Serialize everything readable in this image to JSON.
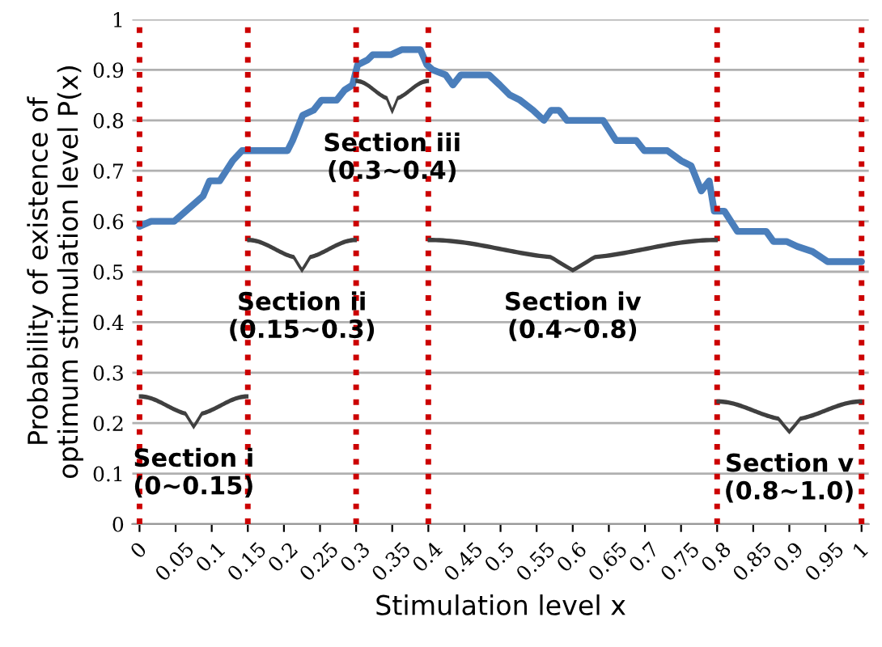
{
  "chart_data": {
    "type": "line",
    "xlabel": "Stimulation level x",
    "ylabel": "Probability of existence of\noptimum stimulation level P(x)",
    "series": [
      {
        "color": "#4a7ebb",
        "x": [
          0,
          0.016,
          0.048,
          0.08,
          0.088,
          0.097,
          0.111,
          0.129,
          0.142,
          0.148,
          0.205,
          0.212,
          0.226,
          0.241,
          0.252,
          0.273,
          0.284,
          0.295,
          0.302,
          0.316,
          0.323,
          0.348,
          0.363,
          0.389,
          0.398,
          0.406,
          0.424,
          0.434,
          0.445,
          0.484,
          0.499,
          0.513,
          0.527,
          0.545,
          0.56,
          0.57,
          0.581,
          0.592,
          0.642,
          0.66,
          0.688,
          0.699,
          0.731,
          0.75,
          0.764,
          0.778,
          0.789,
          0.796,
          0.81,
          0.828,
          0.868,
          0.878,
          0.896,
          0.911,
          0.932,
          0.953,
          0.989,
          1
        ],
        "values": [
          0.59,
          0.6,
          0.6,
          0.64,
          0.65,
          0.68,
          0.68,
          0.72,
          0.74,
          0.74,
          0.74,
          0.76,
          0.81,
          0.82,
          0.84,
          0.84,
          0.86,
          0.87,
          0.91,
          0.92,
          0.93,
          0.93,
          0.94,
          0.94,
          0.91,
          0.9,
          0.89,
          0.87,
          0.89,
          0.89,
          0.87,
          0.85,
          0.84,
          0.82,
          0.8,
          0.82,
          0.82,
          0.8,
          0.8,
          0.76,
          0.76,
          0.74,
          0.74,
          0.72,
          0.71,
          0.66,
          0.68,
          0.62,
          0.62,
          0.58,
          0.58,
          0.56,
          0.56,
          0.55,
          0.54,
          0.52,
          0.52,
          0.52
        ]
      }
    ],
    "xlim": [
      -0.01,
      1.01
    ],
    "ylim": [
      0,
      1
    ],
    "xticks": [
      0,
      0.05,
      0.1,
      0.15,
      0.2,
      0.25,
      0.3,
      0.35,
      0.4,
      0.45,
      0.5,
      0.55,
      0.6,
      0.65,
      0.7,
      0.75,
      0.8,
      0.85,
      0.9,
      0.95,
      1
    ],
    "yticks": [
      0,
      0.1,
      0.2,
      0.3,
      0.4,
      0.5,
      0.6,
      0.7,
      0.8,
      0.9,
      1
    ],
    "grid": "y",
    "marker": "none",
    "line_style": "solid",
    "ref_lines": [
      {
        "axis": "x",
        "value": 0,
        "color": "#cc0000",
        "line_style": "dotted"
      },
      {
        "axis": "x",
        "value": 0.15,
        "color": "#cc0000",
        "line_style": "dotted"
      },
      {
        "axis": "x",
        "value": 0.3,
        "color": "#cc0000",
        "line_style": "dotted"
      },
      {
        "axis": "x",
        "value": 0.4,
        "color": "#cc0000",
        "line_style": "dotted"
      },
      {
        "axis": "x",
        "value": 0.8,
        "color": "#cc0000",
        "line_style": "dotted"
      },
      {
        "axis": "x",
        "value": 1.0,
        "color": "#cc0000",
        "line_style": "dotted"
      }
    ],
    "annotations": [
      "Section i\n(0~0.15)",
      "Section ii\n(0.15~0.3)",
      "Section iii\n(0.3~0.4)",
      "Section iv\n(0.4~0.8)",
      "Section v\n(0.8~1.0)"
    ]
  }
}
